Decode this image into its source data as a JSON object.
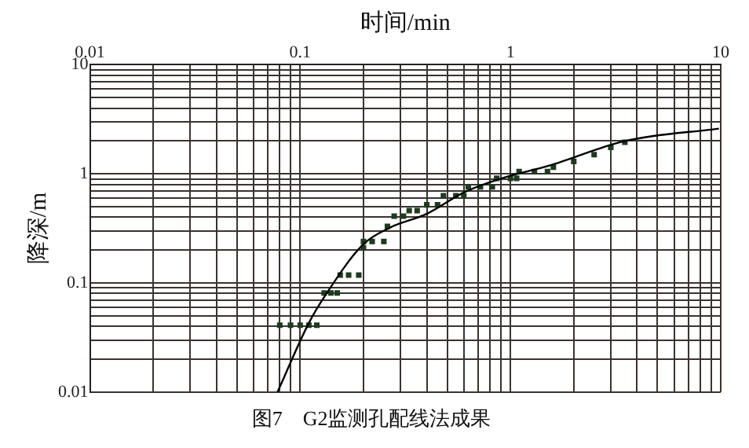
{
  "chart_data": {
    "type": "scatter",
    "title": "图7　G2监测孔配线法成果",
    "xlabel": "时间/min",
    "ylabel": "降深/m",
    "log": "xy",
    "grid": true,
    "legend": false,
    "marker": "square",
    "xlim": [
      0.01,
      10
    ],
    "ylim": [
      0.01,
      10
    ],
    "xticks": [
      0.01,
      {
        "value": 0.02,
        "label": null
      },
      {
        "value": 0.03,
        "label": null
      },
      {
        "value": 0.04,
        "label": null
      },
      {
        "value": 0.05,
        "label": null
      },
      {
        "value": 0.06,
        "label": null
      },
      {
        "value": 0.07,
        "label": null
      },
      {
        "value": 0.08,
        "label": null
      },
      {
        "value": 0.09,
        "label": null
      },
      0.1,
      {
        "value": 0.2,
        "label": null
      },
      {
        "value": 0.3,
        "label": null
      },
      {
        "value": 0.4,
        "label": null
      },
      {
        "value": 0.5,
        "label": null
      },
      {
        "value": 0.6,
        "label": null
      },
      {
        "value": 0.7,
        "label": null
      },
      {
        "value": 0.8,
        "label": null
      },
      {
        "value": 0.9,
        "label": null
      },
      1,
      {
        "value": 2,
        "label": null
      },
      {
        "value": 3,
        "label": null
      },
      {
        "value": 4,
        "label": null
      },
      {
        "value": 5,
        "label": null
      },
      {
        "value": 6,
        "label": null
      },
      {
        "value": 7,
        "label": null
      },
      {
        "value": 8,
        "label": null
      },
      {
        "value": 9,
        "label": null
      },
      10
    ],
    "yticks": [
      0.01,
      {
        "value": 0.02,
        "label": null
      },
      {
        "value": 0.03,
        "label": null
      },
      {
        "value": 0.04,
        "label": null
      },
      {
        "value": 0.05,
        "label": null
      },
      {
        "value": 0.06,
        "label": null
      },
      {
        "value": 0.07,
        "label": null
      },
      {
        "value": 0.08,
        "label": null
      },
      {
        "value": 0.09,
        "label": null
      },
      0.1,
      {
        "value": 0.2,
        "label": null
      },
      {
        "value": 0.3,
        "label": null
      },
      {
        "value": 0.4,
        "label": null
      },
      {
        "value": 0.5,
        "label": null
      },
      {
        "value": 0.6,
        "label": null
      },
      {
        "value": 0.7,
        "label": null
      },
      {
        "value": 0.8,
        "label": null
      },
      {
        "value": 0.9,
        "label": null
      },
      1,
      {
        "value": 2,
        "label": null
      },
      {
        "value": 3,
        "label": null
      },
      {
        "value": 4,
        "label": null
      },
      {
        "value": 5,
        "label": null
      },
      {
        "value": 6,
        "label": null
      },
      {
        "value": 7,
        "label": null
      },
      {
        "value": 8,
        "label": null
      },
      {
        "value": 9,
        "label": null
      },
      10
    ],
    "series": [
      {
        "type": "line",
        "color": "#000000",
        "marker": "none",
        "x": [
          0.078,
          0.11,
          0.134,
          0.197,
          0.266,
          0.4,
          0.605,
          0.91,
          1.53,
          3.5,
          9.8
        ],
        "values": [
          0.01,
          0.043,
          0.081,
          0.22,
          0.32,
          0.43,
          0.68,
          0.91,
          1.19,
          2.0,
          2.6
        ]
      },
      {
        "color": "#1f3a1f",
        "x": [
          0.08,
          0.09,
          0.1,
          0.11,
          0.12,
          0.13,
          0.14,
          0.15,
          0.155,
          0.17,
          0.19,
          0.2,
          0.2,
          0.22,
          0.25,
          0.26,
          0.28,
          0.31,
          0.33,
          0.36,
          0.4,
          0.45,
          0.48,
          0.55,
          0.6,
          0.63,
          0.72,
          0.82,
          0.86,
          1.0,
          1.07,
          1.1,
          1.3,
          1.5,
          1.6,
          2.0,
          2.5,
          3.0,
          3.5
        ],
        "values": [
          0.041,
          0.041,
          0.041,
          0.041,
          0.041,
          0.081,
          0.081,
          0.081,
          0.118,
          0.118,
          0.118,
          0.21,
          0.24,
          0.24,
          0.24,
          0.33,
          0.41,
          0.41,
          0.46,
          0.46,
          0.52,
          0.52,
          0.63,
          0.63,
          0.63,
          0.76,
          0.76,
          0.76,
          0.91,
          0.91,
          0.91,
          1.05,
          1.05,
          1.05,
          1.15,
          1.3,
          1.5,
          1.75,
          1.95
        ]
      }
    ]
  }
}
